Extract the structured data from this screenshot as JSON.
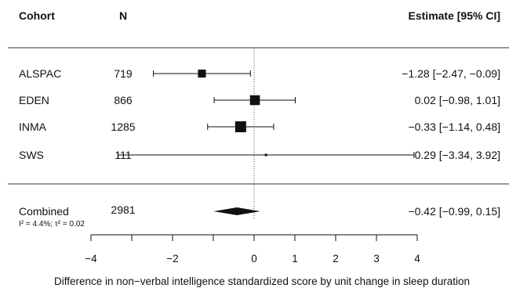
{
  "chart_data": {
    "type": "forest",
    "headers": {
      "cohort": "Cohort",
      "n": "N",
      "estimate": "Estimate [95% CI]"
    },
    "studies": [
      {
        "name": "ALSPAC",
        "n": "719",
        "estimate": -1.28,
        "lower": -2.47,
        "upper": -0.09,
        "ci_text": "−1.28 [−2.47, −0.09]",
        "weight": 0.22
      },
      {
        "name": "EDEN",
        "n": "866",
        "estimate": 0.02,
        "lower": -0.98,
        "upper": 1.01,
        "ci_text": "0.02 [−0.98,  1.01]",
        "weight": 0.34
      },
      {
        "name": "INMA",
        "n": "1285",
        "estimate": -0.33,
        "lower": -1.14,
        "upper": 0.48,
        "ci_text": "−0.33 [−1.14,  0.48]",
        "weight": 0.42
      },
      {
        "name": "SWS",
        "n": "111",
        "estimate": 0.29,
        "lower": -3.34,
        "upper": 3.92,
        "ci_text": "0.29 [−3.34,  3.92]",
        "weight": 0.02
      }
    ],
    "combined": {
      "name": "Combined",
      "n": "2981",
      "estimate": -0.42,
      "lower": -0.99,
      "upper": 0.15,
      "ci_text": "−0.42 [−0.99,  0.15]",
      "heterogeneity": "I² = 4.4%; τ² = 0.02"
    },
    "reference_line": 0,
    "xlim": [
      -4,
      4
    ],
    "xticks": [
      -4,
      -2,
      0,
      1,
      2,
      3,
      4
    ],
    "xtick_labels": [
      "−4",
      "−2",
      "0",
      "1",
      "2",
      "3",
      "4"
    ],
    "xlabel": "Difference in non−verbal intelligence standardized score by unit change in sleep duration",
    "colors": {
      "ink": "#111111",
      "refline": "#555555"
    }
  }
}
